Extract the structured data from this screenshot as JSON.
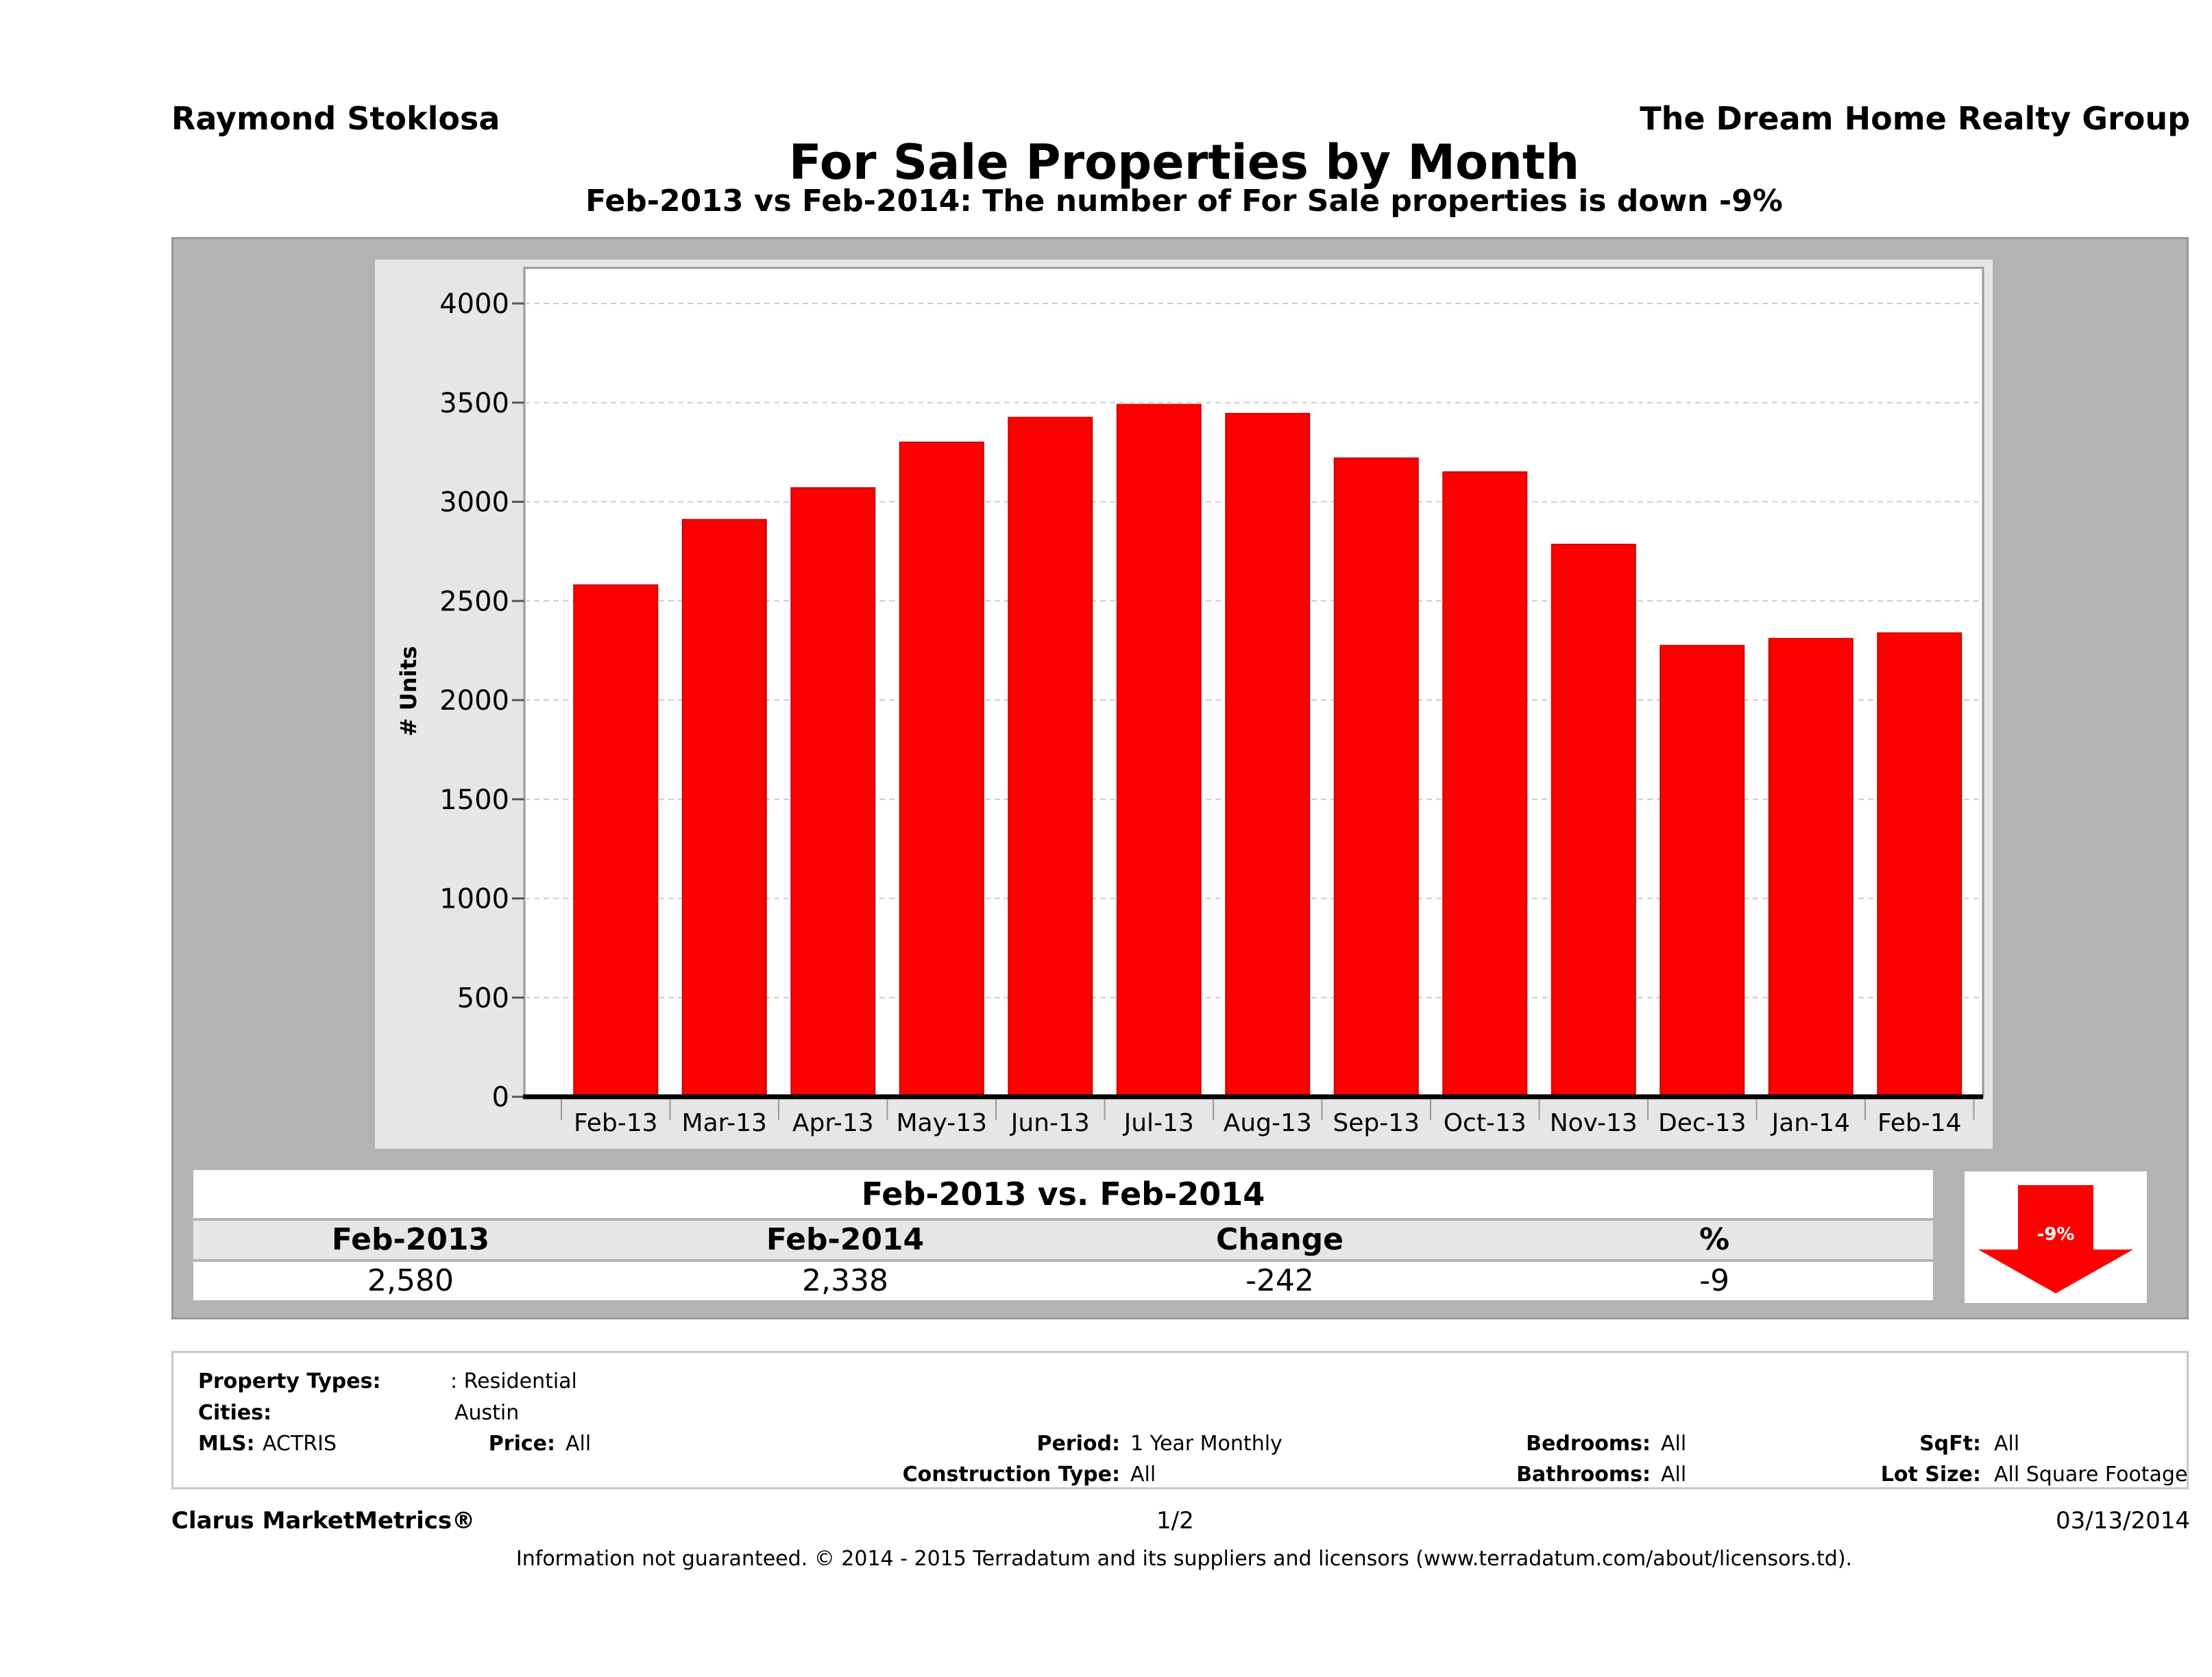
{
  "header": {
    "agent": "Raymond Stoklosa",
    "company": "The Dream Home Realty Group",
    "title": "For Sale Properties by Month",
    "subtitle": "Feb-2013 vs Feb-2014: The number of For Sale  properties is down -9%"
  },
  "chart_data": {
    "type": "bar",
    "categories": [
      "Feb-13",
      "Mar-13",
      "Apr-13",
      "May-13",
      "Jun-13",
      "Jul-13",
      "Aug-13",
      "Sep-13",
      "Oct-13",
      "Nov-13",
      "Dec-13",
      "Jan-14",
      "Feb-14"
    ],
    "values": [
      2580,
      2910,
      3070,
      3300,
      3425,
      3490,
      3445,
      3220,
      3150,
      2785,
      2275,
      2310,
      2338
    ],
    "ylabel": "# Units",
    "ylim": [
      0,
      4000
    ],
    "yticks": [
      0,
      500,
      1000,
      1500,
      2000,
      2500,
      3000,
      3500,
      4000
    ],
    "grid": true,
    "bar_color": "#ff0000"
  },
  "comparison": {
    "title": "Feb-2013 vs. Feb-2014",
    "headers": [
      "Feb-2013",
      "Feb-2014",
      "Change",
      "%"
    ],
    "values": [
      "2,580",
      "2,338",
      "-242",
      "-9"
    ],
    "arrow_label": "-9%",
    "arrow_color": "#ff0000"
  },
  "info": {
    "property_types_label": "Property Types:",
    "property_types_value": ": Residential",
    "cities_label": "Cities:",
    "cities_value": "Austin",
    "mls_label": "MLS:",
    "mls_value": "ACTRIS",
    "price_label": "Price:",
    "price_value": "All",
    "period_label": "Period:",
    "period_value": "1 Year Monthly",
    "construction_label": "Construction Type:",
    "construction_value": "All",
    "bedrooms_label": "Bedrooms:",
    "bedrooms_value": "All",
    "bathrooms_label": "Bathrooms:",
    "bathrooms_value": "All",
    "sqft_label": "SqFt:",
    "sqft_value": "All",
    "lotsize_label": "Lot Size:",
    "lotsize_value": "All Square Footage"
  },
  "footer": {
    "brand": "Clarus MarketMetrics®",
    "page": "1/2",
    "date": "03/13/2014",
    "disclaimer": "Information not guaranteed. © 2014 - 2015 Terradatum and its suppliers and licensors (www.terradatum.com/about/licensors.td)."
  }
}
